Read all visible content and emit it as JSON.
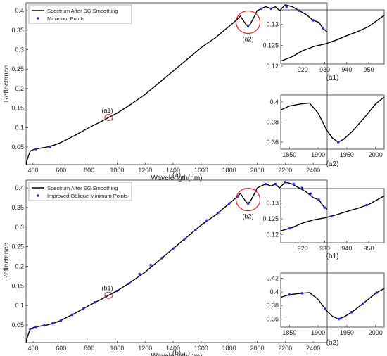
{
  "colors": {
    "spectrum": "#000000",
    "points": "#1f2fe0",
    "circle": "#e02020",
    "axis": "#333333"
  },
  "chart_data": [
    {
      "id": "a",
      "type": "line",
      "xlabel": "Wavelength(nm)",
      "ylabel": "Reflectance",
      "caption": "(a)",
      "xlim": [
        350,
        2500
      ],
      "ylim": [
        0.005,
        0.42
      ],
      "xticks": [
        400,
        600,
        800,
        1000,
        1200,
        1400,
        1600,
        1800,
        2000,
        2200,
        2400
      ],
      "yticks": [
        0.05,
        0.1,
        0.15,
        0.2,
        0.25,
        0.3,
        0.35,
        0.4
      ],
      "legend": [
        "Spectrum After SG Smoothing",
        "Minimum Points"
      ],
      "annotations": [
        {
          "label": "(a1)",
          "x": 940,
          "y": 0.126
        },
        {
          "label": "(a2)",
          "x": 1935,
          "y": 0.374
        }
      ],
      "series": [
        {
          "name": "Spectrum After SG Smoothing",
          "x": [
            350,
            360,
            380,
            400,
            420,
            450,
            500,
            550,
            600,
            700,
            800,
            900,
            940,
            1000,
            1100,
            1200,
            1300,
            1400,
            1500,
            1600,
            1700,
            1750,
            1800,
            1850,
            1880,
            1900,
            1920,
            1935,
            1950,
            1980,
            2000,
            2030,
            2060,
            2100,
            2130,
            2160,
            2200,
            2250,
            2300,
            2350,
            2400,
            2440,
            2470,
            2500
          ],
          "y": [
            0.005,
            0.02,
            0.04,
            0.043,
            0.045,
            0.047,
            0.05,
            0.055,
            0.062,
            0.08,
            0.1,
            0.118,
            0.126,
            0.137,
            0.16,
            0.185,
            0.215,
            0.245,
            0.275,
            0.305,
            0.33,
            0.345,
            0.36,
            0.375,
            0.386,
            0.375,
            0.365,
            0.36,
            0.365,
            0.385,
            0.4,
            0.405,
            0.41,
            0.405,
            0.41,
            0.4,
            0.415,
            0.41,
            0.4,
            0.39,
            0.375,
            0.37,
            0.355,
            0.345
          ]
        },
        {
          "name": "Minimum Points",
          "marker": true,
          "x": [
            420,
            520,
            1935,
            2030,
            2100,
            2210,
            2300,
            2400,
            2470
          ],
          "y": [
            0.045,
            0.051,
            0.36,
            0.405,
            0.405,
            0.41,
            0.4,
            0.375,
            0.355
          ]
        }
      ]
    },
    {
      "id": "a1",
      "type": "line",
      "caption": "(a1)",
      "xlim": [
        910,
        957
      ],
      "ylim": [
        0.1205,
        0.1335
      ],
      "xticks": [
        920,
        930,
        940,
        950
      ],
      "yticks": [
        0.12,
        0.125,
        0.13
      ],
      "series": [
        {
          "x": [
            910,
            915,
            920,
            925,
            930,
            935,
            940,
            945,
            950,
            957
          ],
          "y": [
            0.1212,
            0.1222,
            0.1237,
            0.1247,
            0.1253,
            0.1262,
            0.1273,
            0.1283,
            0.1295,
            0.1322
          ]
        }
      ]
    },
    {
      "id": "a2",
      "type": "line",
      "caption": "(a2)",
      "xlim": [
        1835,
        2015
      ],
      "ylim": [
        0.353,
        0.407
      ],
      "xticks": [
        1850,
        1900,
        1950,
        2000
      ],
      "yticks": [
        0.36,
        0.38,
        0.4
      ],
      "series": [
        {
          "x": [
            1835,
            1850,
            1870,
            1885,
            1900,
            1915,
            1925,
            1935,
            1945,
            1960,
            1980,
            2000,
            2015
          ],
          "y": [
            0.392,
            0.396,
            0.398,
            0.399,
            0.389,
            0.372,
            0.364,
            0.36,
            0.363,
            0.371,
            0.384,
            0.398,
            0.405
          ]
        },
        {
          "marker": true,
          "x": [
            1935
          ],
          "y": [
            0.36
          ]
        }
      ]
    },
    {
      "id": "b",
      "type": "line",
      "xlabel": "Wavelength(nm)",
      "ylabel": "Reflectance",
      "caption": "(b)",
      "xlim": [
        350,
        2500
      ],
      "ylim": [
        0.005,
        0.42
      ],
      "xticks": [
        400,
        600,
        800,
        1000,
        1200,
        1400,
        1600,
        1800,
        2000,
        2200,
        2400
      ],
      "yticks": [
        0.05,
        0.1,
        0.15,
        0.2,
        0.25,
        0.3,
        0.35,
        0.4
      ],
      "legend": [
        "Spectrum After SG Smoothing",
        "Improved Oblique Minimum Points"
      ],
      "annotations": [
        {
          "label": "(b1)",
          "x": 940,
          "y": 0.126
        },
        {
          "label": "(b2)",
          "x": 1935,
          "y": 0.374
        }
      ],
      "series": [
        {
          "name": "Spectrum After SG Smoothing",
          "x": [
            350,
            360,
            380,
            400,
            420,
            450,
            500,
            550,
            600,
            700,
            800,
            900,
            940,
            1000,
            1100,
            1200,
            1300,
            1400,
            1500,
            1600,
            1700,
            1750,
            1800,
            1850,
            1880,
            1900,
            1920,
            1935,
            1950,
            1980,
            2000,
            2030,
            2060,
            2100,
            2130,
            2160,
            2200,
            2250,
            2300,
            2350,
            2400,
            2440,
            2470,
            2500
          ],
          "y": [
            0.005,
            0.02,
            0.04,
            0.043,
            0.045,
            0.047,
            0.05,
            0.055,
            0.062,
            0.08,
            0.1,
            0.118,
            0.126,
            0.137,
            0.16,
            0.185,
            0.215,
            0.245,
            0.275,
            0.305,
            0.33,
            0.345,
            0.36,
            0.375,
            0.386,
            0.375,
            0.365,
            0.36,
            0.365,
            0.385,
            0.4,
            0.405,
            0.41,
            0.405,
            0.41,
            0.4,
            0.415,
            0.41,
            0.4,
            0.39,
            0.375,
            0.37,
            0.355,
            0.345
          ]
        },
        {
          "name": "Improved Oblique Minimum Points",
          "marker": true,
          "x": [
            380,
            420,
            480,
            540,
            600,
            680,
            760,
            840,
            920,
            1000,
            1080,
            1160,
            1240,
            1320,
            1400,
            1480,
            1560,
            1640,
            1720,
            1800,
            1860,
            1935,
            1990,
            2060,
            2130,
            2200,
            2260,
            2320,
            2380,
            2440,
            2480
          ],
          "y": [
            0.04,
            0.045,
            0.049,
            0.054,
            0.062,
            0.076,
            0.092,
            0.108,
            0.122,
            0.137,
            0.155,
            0.18,
            0.203,
            0.221,
            0.245,
            0.269,
            0.293,
            0.317,
            0.336,
            0.36,
            0.378,
            0.36,
            0.393,
            0.41,
            0.41,
            0.415,
            0.41,
            0.4,
            0.385,
            0.37,
            0.35
          ]
        }
      ]
    },
    {
      "id": "b1",
      "type": "line",
      "caption": "(b1)",
      "xlim": [
        910,
        957
      ],
      "ylim": [
        0.1175,
        0.1345
      ],
      "xticks": [
        920,
        930,
        940,
        950
      ],
      "yticks": [
        0.12,
        0.125,
        0.13
      ],
      "series": [
        {
          "x": [
            910,
            915,
            920,
            925,
            930,
            935,
            940,
            945,
            950,
            957
          ],
          "y": [
            0.1212,
            0.1222,
            0.1237,
            0.1247,
            0.1253,
            0.1262,
            0.1273,
            0.1283,
            0.1295,
            0.1322
          ]
        },
        {
          "marker": true,
          "x": [
            914,
            933,
            949
          ],
          "y": [
            0.122,
            0.1258,
            0.1293
          ]
        }
      ]
    },
    {
      "id": "b2",
      "type": "line",
      "caption": "(b2)",
      "xlim": [
        1835,
        2015
      ],
      "ylim": [
        0.348,
        0.428
      ],
      "xticks": [
        1850,
        1900,
        1950,
        2000
      ],
      "yticks": [
        0.36,
        0.38,
        0.4,
        0.42
      ],
      "series": [
        {
          "x": [
            1835,
            1850,
            1870,
            1885,
            1900,
            1915,
            1925,
            1935,
            1945,
            1960,
            1980,
            2000,
            2015
          ],
          "y": [
            0.392,
            0.396,
            0.398,
            0.399,
            0.389,
            0.372,
            0.364,
            0.36,
            0.363,
            0.371,
            0.384,
            0.398,
            0.405
          ]
        },
        {
          "marker": true,
          "x": [
            1850,
            1872,
            1912,
            1936,
            1958,
            1978,
            2002
          ],
          "y": [
            0.396,
            0.398,
            0.375,
            0.36,
            0.37,
            0.383,
            0.399
          ]
        }
      ]
    }
  ]
}
